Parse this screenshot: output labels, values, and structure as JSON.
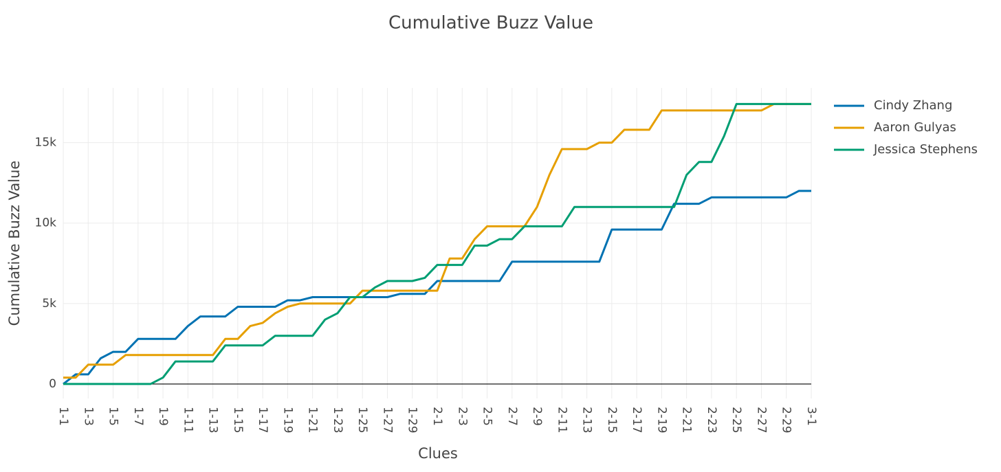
{
  "chart_data": {
    "type": "line",
    "title": "Cumulative Buzz Value",
    "x_label": "Clues",
    "y_label": "Cumulative Buzz Value",
    "categories": [
      "1-1",
      null,
      "1-3",
      null,
      "1-5",
      null,
      "1-7",
      null,
      "1-9",
      null,
      "1-11",
      null,
      "1-13",
      null,
      "1-15",
      null,
      "1-17",
      null,
      "1-19",
      null,
      "1-21",
      null,
      "1-23",
      null,
      "1-25",
      null,
      "1-27",
      null,
      "1-29",
      null,
      "2-1",
      null,
      "2-3",
      null,
      "2-5",
      null,
      "2-7",
      null,
      "2-9",
      null,
      "2-11",
      null,
      "2-13",
      null,
      "2-15",
      null,
      "2-17",
      null,
      "2-19",
      null,
      "2-21",
      null,
      "2-23",
      null,
      "2-25",
      null,
      "2-27",
      null,
      "2-29",
      null,
      "3-1"
    ],
    "series": [
      {
        "name": "Cindy Zhang",
        "color": "#0072b2",
        "values": [
          0,
          600,
          600,
          1600,
          2000,
          2000,
          2800,
          2800,
          2800,
          2800,
          3600,
          4200,
          4200,
          4200,
          4800,
          4800,
          4800,
          4800,
          5200,
          5200,
          5400,
          5400,
          5400,
          5400,
          5400,
          5400,
          5400,
          5600,
          5600,
          5600,
          6400,
          6400,
          6400,
          6400,
          6400,
          6400,
          7600,
          7600,
          7600,
          7600,
          7600,
          7600,
          7600,
          7600,
          9600,
          9600,
          9600,
          9600,
          9600,
          11200,
          11200,
          11200,
          11600,
          11600,
          11600,
          11600,
          11600,
          11600,
          11600,
          12000,
          12000
        ]
      },
      {
        "name": "Aaron Gulyas",
        "color": "#e69f00",
        "values": [
          400,
          400,
          1200,
          1200,
          1200,
          1800,
          1800,
          1800,
          1800,
          1800,
          1800,
          1800,
          1800,
          2800,
          2800,
          3600,
          3800,
          4400,
          4800,
          5000,
          5000,
          5000,
          5000,
          5000,
          5800,
          5800,
          5800,
          5800,
          5800,
          5800,
          5800,
          7800,
          7800,
          9000,
          9800,
          9800,
          9800,
          9800,
          11000,
          13000,
          14600,
          14600,
          14600,
          15000,
          15000,
          15800,
          15800,
          15800,
          17000,
          17000,
          17000,
          17000,
          17000,
          17000,
          17000,
          17000,
          17000,
          17400,
          17400,
          17400,
          17400
        ]
      },
      {
        "name": "Jessica Stephens",
        "color": "#009e73",
        "values": [
          0,
          0,
          0,
          0,
          0,
          0,
          0,
          0,
          400,
          1400,
          1400,
          1400,
          1400,
          2400,
          2400,
          2400,
          2400,
          3000,
          3000,
          3000,
          3000,
          4000,
          4400,
          5400,
          5400,
          6000,
          6400,
          6400,
          6400,
          6600,
          7400,
          7400,
          7400,
          8600,
          8600,
          9000,
          9000,
          9800,
          9800,
          9800,
          9800,
          11000,
          11000,
          11000,
          11000,
          11000,
          11000,
          11000,
          11000,
          11000,
          13000,
          13800,
          13800,
          15400,
          17400,
          17400,
          17400,
          17400,
          17400,
          17400,
          17400
        ]
      }
    ],
    "ylim": [
      -900,
      18400
    ],
    "yticks": [
      0,
      {
        "value": 5000,
        "label": "5k"
      },
      {
        "value": 10000,
        "label": "10k"
      },
      {
        "value": 15000,
        "label": "15k"
      }
    ],
    "grid": true,
    "legend": "right"
  }
}
